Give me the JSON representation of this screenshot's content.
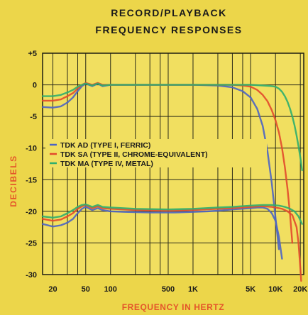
{
  "chart_data": {
    "type": "line",
    "title_lines": [
      "RECORD/PLAYBACK",
      "FREQUENCY RESPONSES"
    ],
    "xlabel": "FREQUENCY IN HERTZ",
    "ylabel": "DECIBELS",
    "x_scale": "log",
    "xlim": [
      15,
      22000
    ],
    "ylim": [
      -30,
      5
    ],
    "x_ticks": [
      {
        "v": 20,
        "label": "20"
      },
      {
        "v": 50,
        "label": "50"
      },
      {
        "v": 100,
        "label": "100"
      },
      {
        "v": 500,
        "label": "500"
      },
      {
        "v": 1000,
        "label": "1K"
      },
      {
        "v": 5000,
        "label": "5K"
      },
      {
        "v": 10000,
        "label": "10K"
      },
      {
        "v": 20000,
        "label": "20K"
      }
    ],
    "x_grid": [
      20,
      30,
      40,
      50,
      100,
      200,
      300,
      400,
      500,
      1000,
      2000,
      3000,
      4000,
      5000,
      10000,
      20000
    ],
    "y_ticks": [
      {
        "v": 5,
        "label": "+5"
      },
      {
        "v": 0,
        "label": "0"
      },
      {
        "v": -5,
        "label": "-5"
      },
      {
        "v": -10,
        "label": "-10"
      },
      {
        "v": -15,
        "label": "-15"
      },
      {
        "v": -20,
        "label": "-20"
      },
      {
        "v": -25,
        "label": "-25"
      },
      {
        "v": -30,
        "label": "-30"
      }
    ],
    "grid": true,
    "legend_position": "left-middle",
    "series": [
      {
        "name": "TDK AD (TYPE I, FERRIC)",
        "color": "#4b64c4",
        "curves": [
          [
            [
              15,
              -3.5
            ],
            [
              20,
              -3.6
            ],
            [
              25,
              -3.4
            ],
            [
              30,
              -2.8
            ],
            [
              35,
              -2.0
            ],
            [
              40,
              -1.0
            ],
            [
              45,
              -0.2
            ],
            [
              50,
              0.2
            ],
            [
              60,
              -0.2
            ],
            [
              70,
              0.2
            ],
            [
              80,
              -0.2
            ],
            [
              100,
              0
            ],
            [
              150,
              0
            ],
            [
              300,
              0
            ],
            [
              1000,
              0
            ],
            [
              2000,
              -0.1
            ],
            [
              3000,
              -0.4
            ],
            [
              4000,
              -1.0
            ],
            [
              5000,
              -2.0
            ],
            [
              6000,
              -3.8
            ],
            [
              7000,
              -6.5
            ],
            [
              8000,
              -10.5
            ],
            [
              9000,
              -15.5
            ],
            [
              10000,
              -21
            ],
            [
              11000,
              -26
            ]
          ],
          [
            [
              15,
              -22.0
            ],
            [
              20,
              -22.4
            ],
            [
              25,
              -22.2
            ],
            [
              30,
              -21.8
            ],
            [
              35,
              -21.2
            ],
            [
              40,
              -20.3
            ],
            [
              45,
              -19.6
            ],
            [
              50,
              -19.3
            ],
            [
              60,
              -19.8
            ],
            [
              70,
              -19.5
            ],
            [
              80,
              -19.8
            ],
            [
              100,
              -20
            ],
            [
              150,
              -20.1
            ],
            [
              300,
              -20.2
            ],
            [
              600,
              -20.2
            ],
            [
              1000,
              -20.1
            ],
            [
              1500,
              -20.0
            ],
            [
              2000,
              -19.9
            ],
            [
              3000,
              -19.7
            ],
            [
              5000,
              -19.5
            ],
            [
              6000,
              -19.4
            ],
            [
              7000,
              -19.4
            ],
            [
              8000,
              -19.6
            ],
            [
              9000,
              -20.3
            ],
            [
              10000,
              -21.5
            ],
            [
              11000,
              -24
            ],
            [
              12000,
              -27.5
            ]
          ]
        ]
      },
      {
        "name": "TDK SA (TYPE II, CHROME-EQUIVALENT)",
        "color": "#e24a2c",
        "curves": [
          [
            [
              15,
              -2.5
            ],
            [
              20,
              -2.5
            ],
            [
              25,
              -2.3
            ],
            [
              30,
              -1.8
            ],
            [
              35,
              -1.3
            ],
            [
              40,
              -0.6
            ],
            [
              45,
              0
            ],
            [
              50,
              0.3
            ],
            [
              60,
              0
            ],
            [
              70,
              0.3
            ],
            [
              80,
              0
            ],
            [
              100,
              0
            ],
            [
              200,
              0
            ],
            [
              500,
              0
            ],
            [
              1000,
              0
            ],
            [
              2000,
              0
            ],
            [
              3000,
              0
            ],
            [
              4000,
              -0.1
            ],
            [
              5000,
              -0.3
            ],
            [
              6000,
              -0.8
            ],
            [
              7000,
              -1.6
            ],
            [
              8000,
              -2.6
            ],
            [
              9000,
              -4.0
            ],
            [
              10000,
              -5.6
            ],
            [
              11000,
              -7.5
            ],
            [
              12000,
              -10
            ],
            [
              13000,
              -13
            ],
            [
              14000,
              -16.5
            ],
            [
              15000,
              -20.5
            ],
            [
              16000,
              -25
            ]
          ],
          [
            [
              15,
              -21.2
            ],
            [
              20,
              -21.5
            ],
            [
              25,
              -21.3
            ],
            [
              30,
              -20.8
            ],
            [
              35,
              -20.3
            ],
            [
              40,
              -19.6
            ],
            [
              45,
              -19.2
            ],
            [
              50,
              -19.0
            ],
            [
              60,
              -19.5
            ],
            [
              70,
              -19.2
            ],
            [
              80,
              -19.5
            ],
            [
              100,
              -19.6
            ],
            [
              200,
              -19.8
            ],
            [
              500,
              -19.9
            ],
            [
              1000,
              -19.8
            ],
            [
              2000,
              -19.6
            ],
            [
              3000,
              -19.5
            ],
            [
              5000,
              -19.3
            ],
            [
              7000,
              -19.2
            ],
            [
              9000,
              -19.3
            ],
            [
              10000,
              -19.4
            ],
            [
              12000,
              -19.6
            ],
            [
              14000,
              -20.0
            ],
            [
              16000,
              -20.6
            ],
            [
              18000,
              -22.5
            ],
            [
              19000,
              -25
            ],
            [
              20000,
              -29
            ],
            [
              20500,
              -31
            ]
          ]
        ]
      },
      {
        "name": "TDK MA (TYPE IV, METAL)",
        "color": "#2fae6e",
        "curves": [
          [
            [
              15,
              -1.8
            ],
            [
              20,
              -1.8
            ],
            [
              25,
              -1.6
            ],
            [
              30,
              -1.2
            ],
            [
              35,
              -0.8
            ],
            [
              40,
              -0.3
            ],
            [
              45,
              0
            ],
            [
              50,
              0.2
            ],
            [
              60,
              -0.1
            ],
            [
              70,
              0.2
            ],
            [
              80,
              -0.1
            ],
            [
              100,
              0
            ],
            [
              200,
              0
            ],
            [
              500,
              0
            ],
            [
              1000,
              0
            ],
            [
              3000,
              0
            ],
            [
              5000,
              0
            ],
            [
              7000,
              -0.1
            ],
            [
              9000,
              -0.2
            ],
            [
              10000,
              -0.3
            ],
            [
              11000,
              -0.6
            ],
            [
              12000,
              -1.1
            ],
            [
              13000,
              -1.8
            ],
            [
              14000,
              -2.7
            ],
            [
              15000,
              -3.8
            ],
            [
              16000,
              -5.0
            ],
            [
              17000,
              -6.4
            ],
            [
              18000,
              -8.0
            ],
            [
              19000,
              -9.7
            ],
            [
              20000,
              -11.5
            ],
            [
              21000,
              -13.5
            ]
          ],
          [
            [
              15,
              -20.8
            ],
            [
              20,
              -21.0
            ],
            [
              25,
              -20.8
            ],
            [
              30,
              -20.3
            ],
            [
              35,
              -19.8
            ],
            [
              40,
              -19.3
            ],
            [
              45,
              -19.0
            ],
            [
              50,
              -18.9
            ],
            [
              60,
              -19.3
            ],
            [
              70,
              -19.0
            ],
            [
              80,
              -19.3
            ],
            [
              100,
              -19.4
            ],
            [
              200,
              -19.6
            ],
            [
              500,
              -19.7
            ],
            [
              1000,
              -19.6
            ],
            [
              2000,
              -19.4
            ],
            [
              3000,
              -19.3
            ],
            [
              5000,
              -19.1
            ],
            [
              7000,
              -19.0
            ],
            [
              9000,
              -19.0
            ],
            [
              11000,
              -19.1
            ],
            [
              13000,
              -19.3
            ],
            [
              15000,
              -19.6
            ],
            [
              17000,
              -20.0
            ],
            [
              19000,
              -20.8
            ],
            [
              21000,
              -22
            ]
          ]
        ]
      }
    ]
  }
}
